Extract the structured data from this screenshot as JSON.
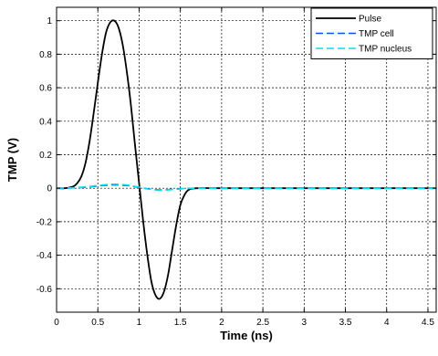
{
  "chart_data": {
    "type": "line",
    "title": "",
    "xlabel": "Time (ns)",
    "ylabel": "TMP (V)",
    "xlim": [
      0,
      4.6
    ],
    "ylim": [
      -0.74,
      1.08
    ],
    "xticks": [
      0,
      0.5,
      1,
      1.5,
      2,
      2.5,
      3,
      3.5,
      4,
      4.5
    ],
    "xtick_labels": [
      "0",
      "0.5",
      "1",
      "1.5",
      "2",
      "2.5",
      "3",
      "3.5",
      "4",
      "4.5"
    ],
    "yticks": [
      1,
      0.8,
      0.6,
      0.4,
      0.2,
      0,
      -0.2,
      -0.4,
      -0.6
    ],
    "ytick_labels": [
      "1",
      "0.8",
      "0.6",
      "0.4",
      "0.2",
      "0",
      "-0.2",
      "-0.4",
      "-0.6"
    ],
    "grid": true,
    "legend_position": "top-right",
    "series": [
      {
        "name": "Pulse",
        "color": "#000000",
        "style": "solid",
        "x": [
          0,
          0.1,
          0.2,
          0.25,
          0.3,
          0.35,
          0.4,
          0.45,
          0.5,
          0.55,
          0.6,
          0.65,
          0.7,
          0.75,
          0.8,
          0.85,
          0.9,
          0.95,
          1.0,
          1.05,
          1.1,
          1.15,
          1.2,
          1.25,
          1.3,
          1.35,
          1.4,
          1.45,
          1.5,
          1.55,
          1.6,
          1.7,
          2.0,
          2.5,
          3.0,
          3.5,
          4.0,
          4.6
        ],
        "y": [
          0,
          0,
          0.01,
          0.03,
          0.07,
          0.15,
          0.28,
          0.45,
          0.63,
          0.8,
          0.93,
          0.99,
          1.0,
          0.96,
          0.86,
          0.7,
          0.5,
          0.26,
          0.03,
          -0.2,
          -0.4,
          -0.56,
          -0.64,
          -0.66,
          -0.62,
          -0.52,
          -0.37,
          -0.22,
          -0.1,
          -0.04,
          -0.01,
          0,
          0,
          0,
          0,
          0,
          0,
          0
        ]
      },
      {
        "name": "TMP cell",
        "color": "#0055ff",
        "style": "dashed",
        "x": [
          0,
          0.2,
          0.4,
          0.55,
          0.7,
          0.85,
          1.0,
          1.1,
          1.25,
          1.4,
          1.55,
          1.7,
          2.0,
          2.5,
          3.0,
          3.5,
          4.0,
          4.6
        ],
        "y": [
          0,
          0.002,
          0.008,
          0.016,
          0.02,
          0.016,
          0.005,
          -0.003,
          -0.01,
          -0.007,
          -0.002,
          0,
          0,
          0,
          0,
          0,
          0,
          0
        ]
      },
      {
        "name": "TMP nucleus",
        "color": "#00e0f0",
        "style": "dashed",
        "x": [
          0,
          0.2,
          0.4,
          0.55,
          0.7,
          0.85,
          1.0,
          1.1,
          1.25,
          1.4,
          1.55,
          1.7,
          2.0,
          2.5,
          3.0,
          3.5,
          4.0,
          4.6
        ],
        "y": [
          0,
          0.003,
          0.01,
          0.019,
          0.024,
          0.019,
          0.006,
          -0.004,
          -0.012,
          -0.008,
          -0.002,
          0,
          0,
          0,
          0,
          0,
          0,
          0
        ]
      }
    ]
  }
}
